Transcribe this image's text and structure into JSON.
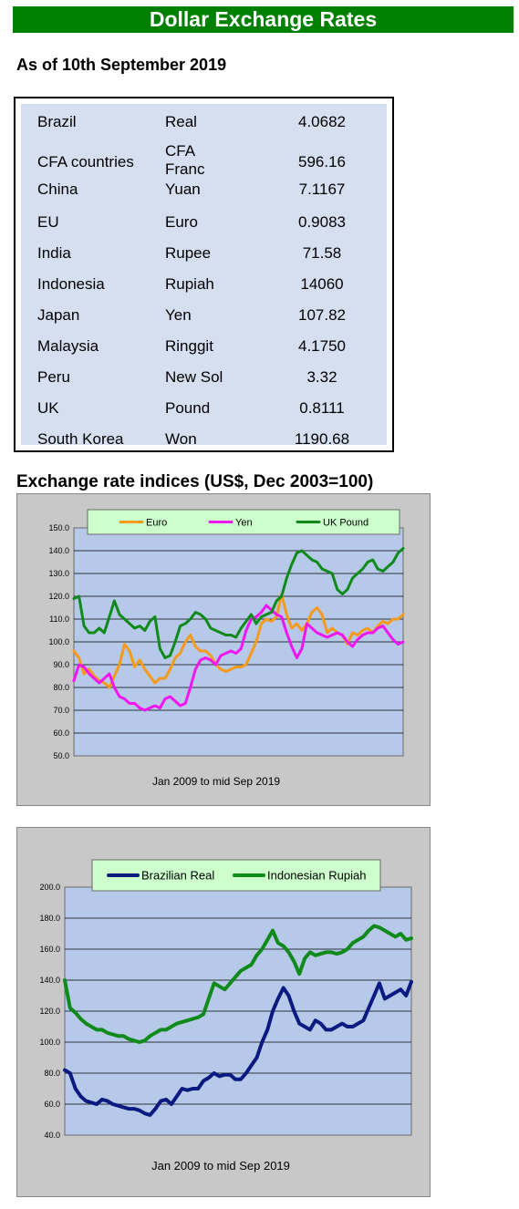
{
  "title": "Dollar Exchange Rates",
  "as_of": "As of 10th September 2019",
  "rates": [
    {
      "country": "Brazil",
      "currency": "Real",
      "value": "4.0682"
    },
    {
      "country": "CFA countries",
      "currency": "CFA Franc",
      "value": "596.16"
    },
    {
      "country": "China",
      "currency": "Yuan",
      "value": "7.1167"
    },
    {
      "country": "EU",
      "currency": "Euro",
      "value": "0.9083"
    },
    {
      "country": "India",
      "currency": "Rupee",
      "value": "71.58"
    },
    {
      "country": "Indonesia",
      "currency": "Rupiah",
      "value": "14060"
    },
    {
      "country": "Japan",
      "currency": "Yen",
      "value": "107.82"
    },
    {
      "country": "Malaysia",
      "currency": "Ringgit",
      "value": "4.1750"
    },
    {
      "country": "Peru",
      "currency": "New Sol",
      "value": "3.32"
    },
    {
      "country": "UK",
      "currency": "Pound",
      "value": "0.8111"
    },
    {
      "country": "South Korea",
      "currency": "Won",
      "value": "1190.68"
    }
  ],
  "indices_title": "Exchange rate indices (US$, Dec 2003=100)",
  "chart_data": [
    {
      "type": "line",
      "caption": "Jan 2009  to mid Sep 2019",
      "xlabel": "Jan 2009  to mid Sep 2019",
      "ylim": [
        50,
        150
      ],
      "yticks": [
        "50.0",
        "60.0",
        "70.0",
        "80.0",
        "90.0",
        "100.0",
        "110.0",
        "120.0",
        "130.0",
        "140.0",
        "150.0"
      ],
      "grid": true,
      "legend": "top",
      "series": [
        {
          "name": "Euro",
          "color": "#f59a1b",
          "values": [
            96,
            93,
            86,
            88,
            85,
            83,
            82,
            80,
            85,
            90,
            99,
            96,
            89,
            92,
            88,
            85,
            82,
            84,
            84,
            88,
            93,
            95,
            100,
            103,
            98,
            96,
            96,
            94,
            90,
            88,
            87,
            88,
            89,
            89,
            90,
            95,
            100,
            108,
            110,
            109,
            111,
            121,
            112,
            106,
            108,
            105,
            108,
            113,
            115,
            112,
            104,
            106,
            104,
            103,
            99,
            104,
            103,
            105,
            106,
            104,
            107,
            109,
            108,
            110,
            110,
            112
          ]
        },
        {
          "name": "Yen",
          "color": "#f016f0",
          "values": [
            83,
            90,
            89,
            86,
            84,
            82,
            84,
            86,
            80,
            76,
            75,
            73,
            73,
            71,
            70,
            71,
            72,
            71,
            75,
            76,
            74,
            72,
            73,
            80,
            88,
            92,
            93,
            92,
            90,
            94,
            95,
            96,
            95,
            97,
            105,
            110,
            111,
            113,
            116,
            114,
            112,
            111,
            104,
            98,
            93,
            97,
            108,
            106,
            104,
            103,
            102,
            103,
            104,
            103,
            100,
            98,
            101,
            103,
            104,
            104,
            106,
            107,
            104,
            101,
            99,
            100
          ]
        },
        {
          "name": "UK Pound",
          "color": "#0f8a1b",
          "values": [
            119,
            120,
            107,
            104,
            104,
            106,
            104,
            111,
            118,
            112,
            110,
            108,
            106,
            107,
            105,
            109,
            111,
            97,
            93,
            94,
            100,
            107,
            108,
            110,
            113,
            112,
            110,
            106,
            105,
            104,
            103,
            103,
            102,
            106,
            109,
            112,
            108,
            111,
            112,
            113,
            118,
            120,
            128,
            134,
            139,
            140,
            138,
            136,
            135,
            132,
            131,
            130,
            123,
            121,
            123,
            128,
            130,
            132,
            135,
            136,
            132,
            131,
            133,
            135,
            139,
            141
          ]
        }
      ]
    },
    {
      "type": "line",
      "caption": "Jan 2009  to mid Sep 2019",
      "xlabel": "Jan 2009  to mid Sep 2019",
      "ylim": [
        40,
        200
      ],
      "yticks": [
        "40.0",
        "60.0",
        "80.0",
        "100.0",
        "120.0",
        "140.0",
        "160.0",
        "180.0",
        "200.0"
      ],
      "grid": true,
      "legend": "top",
      "series": [
        {
          "name": "Brazilian Real",
          "color": "#0b1a80",
          "values": [
            82,
            80,
            70,
            65,
            62,
            61,
            60,
            63,
            62,
            60,
            59,
            58,
            57,
            57,
            56,
            54,
            53,
            57,
            62,
            63,
            60,
            65,
            70,
            69,
            70,
            70,
            75,
            77,
            80,
            78,
            79,
            79,
            76,
            76,
            80,
            85,
            90,
            100,
            108,
            120,
            128,
            135,
            130,
            120,
            112,
            110,
            108,
            114,
            112,
            108,
            108,
            110,
            112,
            110,
            110,
            112,
            114,
            122,
            130,
            138,
            128,
            130,
            132,
            134,
            130,
            139
          ]
        },
        {
          "name": "Indonesian Rupiah",
          "color": "#0f8a1b",
          "values": [
            140,
            122,
            119,
            115,
            112,
            110,
            108,
            108,
            106,
            105,
            104,
            104,
            102,
            101,
            100,
            101,
            104,
            106,
            108,
            108,
            110,
            112,
            113,
            114,
            115,
            116,
            118,
            128,
            138,
            136,
            134,
            138,
            142,
            146,
            148,
            150,
            156,
            160,
            166,
            172,
            164,
            162,
            158,
            152,
            144,
            154,
            158,
            156,
            157,
            158,
            158,
            157,
            158,
            160,
            164,
            166,
            168,
            172,
            175,
            174,
            172,
            170,
            168,
            170,
            166,
            167
          ]
        }
      ]
    }
  ]
}
